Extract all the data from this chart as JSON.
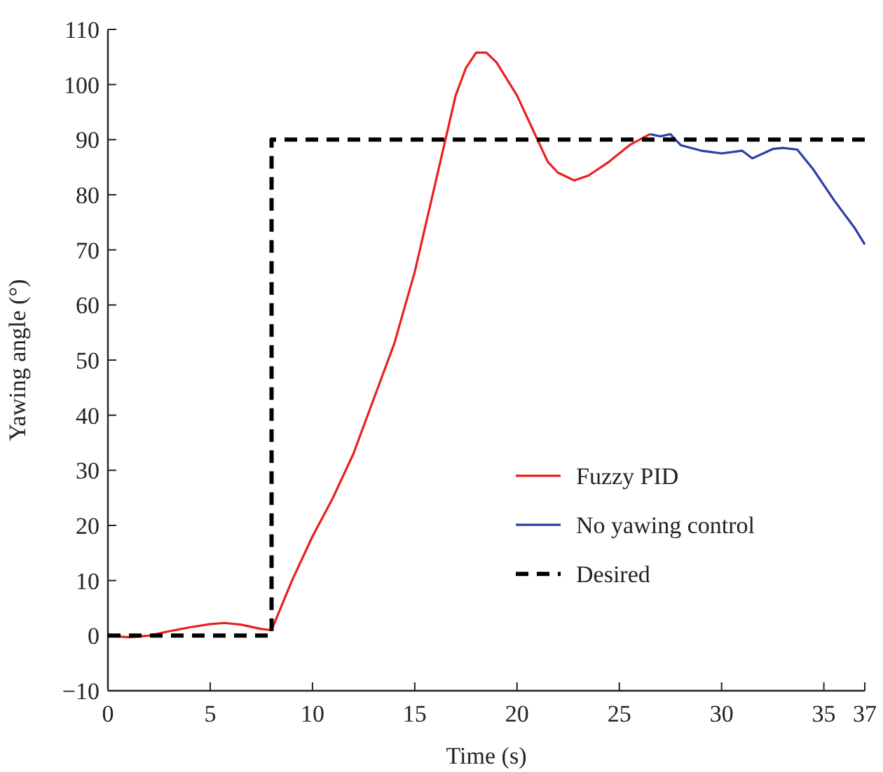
{
  "chart_data": {
    "type": "line",
    "xlabel": "Time (s)",
    "ylabel": "Yawing angle (°)",
    "xlim": [
      0,
      37
    ],
    "ylim": [
      -10,
      110
    ],
    "xticks": [
      0,
      5,
      10,
      15,
      20,
      25,
      30,
      35,
      37
    ],
    "yticks": [
      -10,
      0,
      10,
      20,
      30,
      40,
      50,
      60,
      70,
      80,
      90,
      100,
      110
    ],
    "grid": false,
    "legend": "right",
    "series": [
      {
        "name": "Fuzzy PID",
        "color": "#e8201f",
        "line_style": "solid",
        "x": [
          0,
          1,
          2,
          3,
          4,
          5,
          5.7,
          6.5,
          7.5,
          8,
          9,
          10,
          11,
          12,
          13,
          14,
          15,
          15.5,
          16,
          16.5,
          17,
          17.5,
          18,
          18.5,
          19,
          20,
          21,
          21.5,
          22,
          22.8,
          23.5,
          24.5,
          25.5,
          26.5
        ],
        "values": [
          0,
          -0.3,
          0,
          0.8,
          1.5,
          2.1,
          2.3,
          2,
          1.2,
          1,
          10,
          18,
          25,
          33,
          43,
          53,
          66,
          74,
          82,
          90,
          98,
          103,
          105.8,
          105.8,
          104,
          98,
          90,
          86,
          84,
          82.6,
          83.5,
          86,
          89,
          91
        ]
      },
      {
        "name": "No yawing control",
        "color": "#2b3fa6",
        "line_style": "solid",
        "x": [
          26.5,
          27,
          27.5,
          28,
          29,
          30,
          31,
          31.5,
          32.5,
          33,
          33.7,
          34.5,
          35.5,
          36.5,
          37
        ],
        "values": [
          91,
          90.6,
          91,
          89,
          88,
          87.5,
          88,
          86.6,
          88.3,
          88.5,
          88.2,
          84.5,
          79,
          74,
          71
        ]
      },
      {
        "name": "Desired",
        "color": "#000000",
        "line_style": "dashed",
        "x": [
          0,
          8,
          8,
          37
        ],
        "values": [
          0,
          0,
          90,
          90
        ]
      }
    ]
  }
}
